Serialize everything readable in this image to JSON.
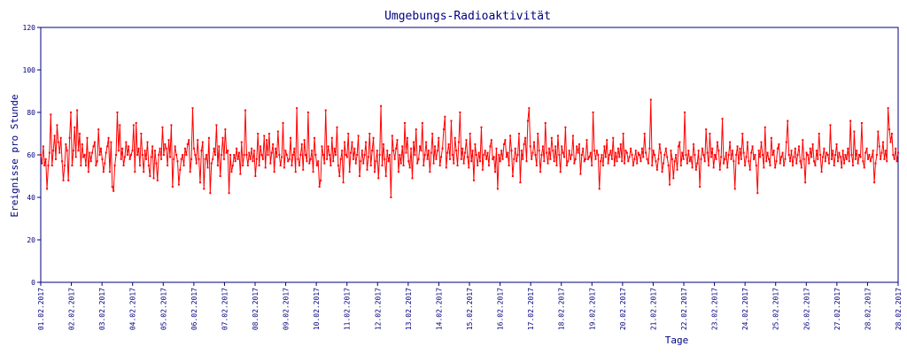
{
  "chart_data": {
    "type": "line",
    "title": "Umgebungs-Radioaktivität",
    "xlabel": "Tage",
    "ylabel": "Ereignisse pro Stunde",
    "ylim": [
      0,
      120
    ],
    "yticks": [
      0,
      20,
      40,
      60,
      80,
      100,
      120
    ],
    "xticks": [
      "01.02.2017",
      "02.02.2017",
      "03.02.2017",
      "04.02.2017",
      "05.02.2017",
      "06.02.2017",
      "07.02.2017",
      "08.02.2017",
      "09.02.2017",
      "10.02.2017",
      "11.02.2017",
      "12.02.2017",
      "13.02.2017",
      "14.02.2017",
      "15.02.2017",
      "16.02.2017",
      "17.02.2017",
      "18.02.2017",
      "19.02.2017",
      "20.02.2017",
      "21.02.2017",
      "22.02.2017",
      "23.02.2017",
      "24.02.2017",
      "25.02.2017",
      "26.02.2017",
      "27.02.2017",
      "28.02.2017",
      "28.02.2017"
    ],
    "x_unit": "hour",
    "series": [
      {
        "color": "#ff0000",
        "values": [
          60,
          56,
          64,
          55,
          58,
          44,
          55,
          61,
          79,
          55,
          62,
          69,
          58,
          74,
          66,
          61,
          68,
          57,
          48,
          55,
          65,
          62,
          48,
          68,
          80,
          55,
          62,
          73,
          59,
          81,
          62,
          70,
          55,
          65,
          59,
          60,
          55,
          68,
          52,
          61,
          57,
          61,
          64,
          66,
          55,
          57,
          72,
          60,
          63,
          58,
          52,
          56,
          61,
          64,
          68,
          52,
          66,
          45,
          43,
          55,
          60,
          80,
          62,
          74,
          58,
          63,
          55,
          59,
          66,
          60,
          64,
          58,
          60,
          62,
          74,
          52,
          75,
          60,
          63,
          55,
          70,
          60,
          52,
          62,
          58,
          66,
          55,
          50,
          59,
          64,
          49,
          62,
          56,
          48,
          60,
          63,
          58,
          73,
          60,
          65,
          63,
          55,
          67,
          59,
          74,
          45,
          58,
          64,
          60,
          57,
          46,
          53,
          58,
          60,
          55,
          63,
          60,
          65,
          67,
          52,
          58,
          82,
          63,
          60,
          56,
          67,
          58,
          47,
          62,
          66,
          44,
          58,
          60,
          54,
          68,
          42,
          56,
          58,
          63,
          60,
          74,
          55,
          64,
          50,
          60,
          68,
          58,
          72,
          61,
          62,
          42,
          60,
          52,
          55,
          60,
          57,
          63,
          58,
          61,
          51,
          66,
          55,
          60,
          81,
          60,
          55,
          61,
          58,
          63,
          57,
          62,
          50,
          58,
          70,
          55,
          64,
          60,
          58,
          69,
          54,
          67,
          60,
          70,
          56,
          61,
          65,
          52,
          63,
          59,
          71,
          60,
          55,
          59,
          75,
          54,
          62,
          60,
          57,
          58,
          68,
          55,
          60,
          63,
          52,
          82,
          58,
          55,
          60,
          65,
          53,
          67,
          60,
          57,
          80,
          56,
          58,
          62,
          52,
          68,
          60,
          55,
          57,
          45,
          48,
          64,
          60,
          56,
          81,
          58,
          64,
          60,
          55,
          68,
          57,
          63,
          60,
          73,
          55,
          50,
          58,
          62,
          47,
          66,
          60,
          59,
          70,
          52,
          61,
          66,
          58,
          63,
          56,
          60,
          69,
          50,
          57,
          62,
          56,
          60,
          66,
          53,
          59,
          70,
          55,
          62,
          68,
          52,
          57,
          62,
          49,
          60,
          83,
          55,
          65,
          58,
          50,
          62,
          57,
          60,
          40,
          69,
          62,
          58,
          63,
          67,
          52,
          60,
          56,
          64,
          55,
          75,
          61,
          68,
          57,
          54,
          63,
          49,
          66,
          60,
          72,
          56,
          58,
          64,
          62,
          75,
          55,
          60,
          66,
          58,
          62,
          52,
          61,
          70,
          56,
          64,
          58,
          62,
          68,
          55,
          59,
          63,
          72,
          78,
          54,
          61,
          65,
          58,
          76,
          60,
          56,
          68,
          62,
          55,
          66,
          80,
          58,
          63,
          56,
          61,
          67,
          59,
          54,
          70,
          57,
          62,
          48,
          65,
          60,
          55,
          61,
          57,
          73,
          53,
          60,
          62,
          58,
          61,
          55,
          64,
          67,
          58,
          59,
          52,
          63,
          44,
          60,
          57,
          62,
          58,
          65,
          67,
          59,
          61,
          55,
          69,
          62,
          50,
          58,
          63,
          57,
          60,
          70,
          47,
          62,
          58,
          65,
          68,
          57,
          76,
          82,
          64,
          58,
          61,
          66,
          60,
          55,
          70,
          62,
          52,
          60,
          64,
          57,
          75,
          61,
          56,
          63,
          58,
          68,
          62,
          57,
          64,
          55,
          69,
          60,
          52,
          64,
          61,
          59,
          73,
          55,
          57,
          62,
          58,
          60,
          69,
          56,
          58,
          64,
          61,
          65,
          51,
          60,
          63,
          57,
          58,
          67,
          58,
          59,
          61,
          55,
          80,
          62,
          58,
          62,
          60,
          44,
          57,
          60,
          55,
          64,
          59,
          67,
          56,
          60,
          62,
          58,
          68,
          55,
          61,
          57,
          63,
          59,
          65,
          57,
          70,
          56,
          62,
          61,
          57,
          59,
          63,
          60,
          55,
          58,
          62,
          56,
          61,
          60,
          57,
          63,
          59,
          70,
          61,
          58,
          56,
          63,
          86,
          55,
          62,
          60,
          57,
          53,
          58,
          65,
          61,
          52,
          56,
          60,
          63,
          59,
          55,
          46,
          62,
          58,
          49,
          57,
          60,
          53,
          64,
          66,
          55,
          61,
          58,
          80,
          60,
          56,
          62,
          57,
          59,
          54,
          65,
          60,
          53,
          56,
          62,
          45,
          58,
          63,
          60,
          57,
          72,
          61,
          55,
          70,
          59,
          63,
          54,
          60,
          58,
          66,
          62,
          53,
          59,
          77,
          56,
          58,
          61,
          54,
          60,
          66,
          58,
          62,
          57,
          44,
          60,
          64,
          56,
          63,
          58,
          70,
          61,
          55,
          59,
          66,
          57,
          53,
          61,
          64,
          58,
          60,
          55,
          42,
          62,
          59,
          66,
          60,
          54,
          73,
          57,
          61,
          58,
          55,
          68,
          60,
          62,
          54,
          57,
          63,
          65,
          56,
          59,
          61,
          55,
          58,
          66,
          76,
          60,
          57,
          62,
          55,
          59,
          63,
          56,
          60,
          64,
          57,
          54,
          67,
          58,
          47,
          61,
          60,
          56,
          63,
          59,
          65,
          57,
          55,
          62,
          58,
          70,
          60,
          52,
          59,
          63,
          57,
          61,
          60,
          56,
          74,
          58,
          62,
          55,
          60,
          65,
          57,
          61,
          59,
          54,
          62,
          56,
          60,
          58,
          63,
          57,
          76,
          60,
          55,
          71,
          58,
          62,
          56,
          60,
          59,
          75,
          57,
          54,
          61,
          63,
          58,
          60,
          57,
          59,
          62,
          47,
          56,
          60,
          71,
          64,
          58,
          61,
          66,
          58,
          62,
          57,
          82,
          72,
          66,
          70,
          60,
          58,
          63,
          57,
          61
        ]
      }
    ]
  }
}
